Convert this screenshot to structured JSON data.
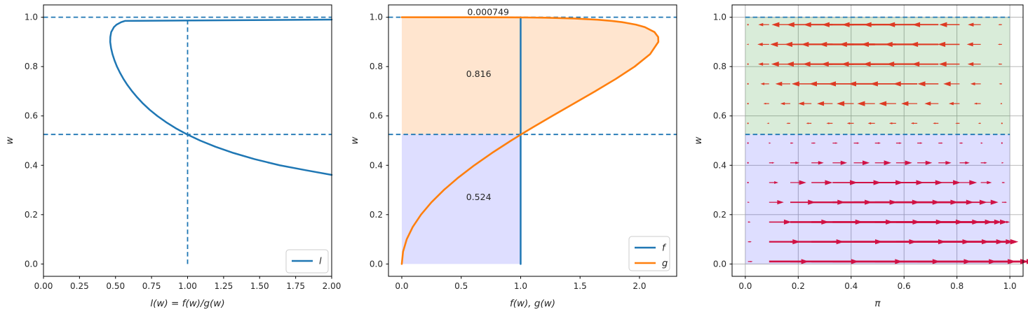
{
  "figure": {
    "background": "#ffffff"
  },
  "colors": {
    "blue": "#1f77b4",
    "orange": "#ff7f0e",
    "spine": "#000000",
    "grid": "#b0b0b0",
    "text": "#262626",
    "legend_border": "#cccccc",
    "orange_fill": "rgba(255,127,14,0.2)",
    "purple_fill": "rgba(0,0,255,0.13)",
    "green_fill": "rgba(0,128,0,0.15)",
    "arrow_left": "#dd3b24",
    "arrow_right": "#d01245"
  },
  "chart_data": [
    {
      "type": "line",
      "name": "likelihood-ratio",
      "xlabel": "l(w) = f(w)/g(w)",
      "ylabel": "w",
      "xlim": [
        0.0,
        2.0
      ],
      "ylim": [
        -0.05,
        1.05
      ],
      "grid": false,
      "xticks": {
        "values": [
          0.0,
          0.25,
          0.5,
          0.75,
          1.0,
          1.25,
          1.5,
          1.75,
          2.0
        ],
        "labels": [
          "0.00",
          "0.25",
          "0.50",
          "0.75",
          "1.00",
          "1.25",
          "1.50",
          "1.75",
          "2.00"
        ]
      },
      "yticks": {
        "values": [
          0.0,
          0.2,
          0.4,
          0.6,
          0.8,
          1.0
        ],
        "labels": [
          "0.0",
          "0.2",
          "0.4",
          "0.6",
          "0.8",
          "1.0"
        ]
      },
      "series": [
        {
          "name": "l",
          "color": "blue",
          "width": 2.5,
          "points": [
            [
              2.0,
              0.361
            ],
            [
              1.82,
              0.38
            ],
            [
              1.639,
              0.4
            ],
            [
              1.464,
              0.425
            ],
            [
              1.318,
              0.45
            ],
            [
              1.194,
              0.475
            ],
            [
              1.088,
              0.5
            ],
            [
              0.997,
              0.525
            ],
            [
              0.918,
              0.55
            ],
            [
              0.85,
              0.575
            ],
            [
              0.79,
              0.6
            ],
            [
              0.737,
              0.625
            ],
            [
              0.691,
              0.65
            ],
            [
              0.651,
              0.675
            ],
            [
              0.615,
              0.7
            ],
            [
              0.583,
              0.725
            ],
            [
              0.555,
              0.75
            ],
            [
              0.531,
              0.775
            ],
            [
              0.51,
              0.8
            ],
            [
              0.493,
              0.825
            ],
            [
              0.479,
              0.85
            ],
            [
              0.469,
              0.875
            ],
            [
              0.463,
              0.9
            ],
            [
              0.464,
              0.92
            ],
            [
              0.47,
              0.94
            ],
            [
              0.489,
              0.96
            ],
            [
              0.507,
              0.97
            ],
            [
              0.539,
              0.98
            ],
            [
              0.565,
              0.985
            ],
            [
              2.0,
              0.9905
            ]
          ]
        }
      ],
      "dashed_lines": [
        {
          "orient": "h",
          "w": 1.0,
          "span": "full"
        },
        {
          "orient": "h",
          "w": 0.525,
          "span": "full"
        },
        {
          "orient": "v",
          "x": 1.0,
          "w0": 0.0,
          "w1": 1.0
        }
      ],
      "fills": [],
      "annotations": [],
      "legend": {
        "entries": [
          {
            "label": "l",
            "color": "blue"
          }
        ]
      }
    },
    {
      "type": "line",
      "name": "densities",
      "xlabel": "f(w), g(w)",
      "ylabel": "w",
      "xlim": [
        -0.112,
        2.313
      ],
      "ylim": [
        -0.05,
        1.05
      ],
      "grid": false,
      "xticks": {
        "values": [
          0.0,
          0.5,
          1.0,
          1.5,
          2.0
        ],
        "labels": [
          "0.0",
          "0.5",
          "1.0",
          "1.5",
          "2.0"
        ]
      },
      "yticks": {
        "values": [
          0.0,
          0.2,
          0.4,
          0.6,
          0.8,
          1.0
        ],
        "labels": [
          "0.0",
          "0.2",
          "0.4",
          "0.6",
          "0.8",
          "1.0"
        ]
      },
      "series": [
        {
          "name": "f",
          "color": "blue",
          "width": 2.5,
          "points": [
            [
              1.0,
              0.0
            ],
            [
              1.0,
              1.0
            ]
          ]
        },
        {
          "name": "g",
          "color": "orange",
          "width": 2.6,
          "points": [
            [
              0,
              0
            ],
            [
              0.0105,
              0.05
            ],
            [
              0.0414,
              0.1
            ],
            [
              0.092,
              0.15
            ],
            [
              0.1616,
              0.2
            ],
            [
              0.2492,
              0.25
            ],
            [
              0.354,
              0.3
            ],
            [
              0.4747,
              0.35
            ],
            [
              0.6102,
              0.4
            ],
            [
              0.7589,
              0.45
            ],
            [
              0.9193,
              0.5
            ],
            [
              1.0032,
              0.525
            ],
            [
              1.0892,
              0.55
            ],
            [
              1.266,
              0.6
            ],
            [
              1.4466,
              0.65
            ],
            [
              1.6268,
              0.7
            ],
            [
              1.8007,
              0.75
            ],
            [
              1.9593,
              0.8
            ],
            [
              2.0885,
              0.85
            ],
            [
              2.1588,
              0.9
            ],
            [
              2.1572,
              0.92
            ],
            [
              2.126,
              0.94
            ],
            [
              2.0448,
              0.96
            ],
            [
              1.9707,
              0.97
            ],
            [
              1.8551,
              0.98
            ],
            [
              1.769,
              0.985
            ],
            [
              1.648,
              0.99
            ],
            [
              1.449,
              0.995
            ],
            [
              1.214,
              0.998
            ],
            [
              1.059,
              0.999
            ],
            [
              0.9225,
              0.9995
            ],
            [
              0.669,
              0.9999
            ],
            [
              0.0,
              1.0
            ]
          ]
        }
      ],
      "dashed_lines": [
        {
          "orient": "h",
          "w": 1.0,
          "span": "full"
        },
        {
          "orient": "h",
          "w": 0.525,
          "span": "full"
        }
      ],
      "fills": [
        {
          "shape": "curve_area",
          "series": "g",
          "w_min": 0.525,
          "color": "orange_fill"
        },
        {
          "shape": "rect",
          "x0": 0.0,
          "x1": 1.0,
          "w0": 0.0,
          "w1": 0.525,
          "color": "purple_fill"
        }
      ],
      "annotations": [
        {
          "text": "0.000749",
          "x": 0.727,
          "w": 1.0,
          "dy": -3
        },
        {
          "text": "0.816",
          "x": 0.647,
          "w": 0.77,
          "dy": 4
        },
        {
          "text": "0.524",
          "x": 0.647,
          "w": 0.27,
          "dy": 4
        }
      ],
      "legend": {
        "entries": [
          {
            "label": "f",
            "color": "blue"
          },
          {
            "label": "g",
            "color": "orange"
          }
        ]
      }
    },
    {
      "type": "quiver",
      "name": "phase-field",
      "xlabel": "π",
      "ylabel": "w",
      "xlim": [
        -0.05,
        1.05
      ],
      "ylim": [
        -0.05,
        1.05
      ],
      "grid": true,
      "xticks": {
        "values": [
          0.0,
          0.2,
          0.4,
          0.6,
          0.8,
          1.0
        ],
        "labels": [
          "0.0",
          "0.2",
          "0.4",
          "0.6",
          "0.8",
          "1.0"
        ]
      },
      "yticks": {
        "values": [
          0.0,
          0.2,
          0.4,
          0.6,
          0.8,
          1.0
        ],
        "labels": [
          "0.0",
          "0.2",
          "0.4",
          "0.6",
          "0.8",
          "1.0"
        ]
      },
      "series": [],
      "dashed_lines": [
        {
          "orient": "h",
          "w": 1.0,
          "x0": 0.0,
          "x1": 1.0
        },
        {
          "orient": "h",
          "w": 0.525,
          "x0": 0.0,
          "x1": 1.0
        }
      ],
      "fills": [
        {
          "shape": "rect",
          "x0": 0.0,
          "x1": 1.0,
          "w0": 0.525,
          "w1": 1.0,
          "color": "green_fill"
        },
        {
          "shape": "rect",
          "x0": 0.0,
          "x1": 1.0,
          "w0": 0.0,
          "w1": 0.525,
          "color": "purple_fill"
        }
      ],
      "annotations": [],
      "legend": null,
      "quiver": {
        "profile": "u(pi,w) = u_row * 4 * pi * (1 - pi)",
        "pi": [
          0.01,
          0.09,
          0.17,
          0.25,
          0.33,
          0.41,
          0.49,
          0.57,
          0.65,
          0.73,
          0.81,
          0.89,
          0.97
        ],
        "rows": [
          {
            "w": 0.01,
            "u": 0.46
          },
          {
            "w": 0.09,
            "u": 0.36
          },
          {
            "w": 0.17,
            "u": 0.26
          },
          {
            "w": 0.25,
            "u": 0.17
          },
          {
            "w": 0.33,
            "u": 0.107
          },
          {
            "w": 0.41,
            "u": 0.062
          },
          {
            "w": 0.49,
            "u": 0.022
          },
          {
            "w": 0.57,
            "u": -0.027
          },
          {
            "w": 0.65,
            "u": -0.067
          },
          {
            "w": 0.73,
            "u": -0.1
          },
          {
            "w": 0.81,
            "u": -0.128
          },
          {
            "w": 0.89,
            "u": -0.135
          },
          {
            "w": 0.97,
            "u": -0.125
          }
        ]
      }
    }
  ]
}
